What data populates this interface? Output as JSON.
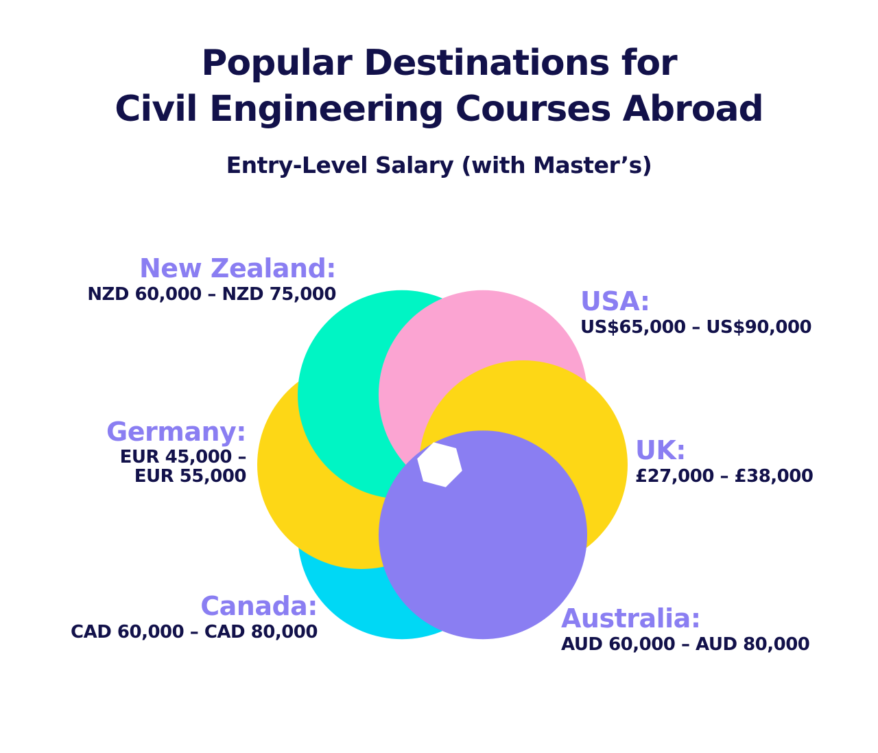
{
  "title": {
    "line1": "Popular Destinations for",
    "line2": "Civil Engineering Courses Abroad"
  },
  "subtitle": "Entry-Level Salary (with Master’s)",
  "colors": {
    "title": "#12114a",
    "country_label": "#8a7ef2",
    "teal": "#00f5c4",
    "pink": "#fba4d2",
    "yellow": "#fdd716",
    "cyan": "#00d8f5",
    "purple": "#8a7ef2"
  },
  "destinations": [
    {
      "country": "New Zealand:",
      "salary": "NZD 60,000 – NZD 75,000",
      "color": "#00f5c4"
    },
    {
      "country": "USA:",
      "salary": "US$65,000 – US$90,000",
      "color": "#fba4d2"
    },
    {
      "country": "UK:",
      "salary": "£27,000 – £38,000",
      "color": "#fdd716"
    },
    {
      "country": "Australia:",
      "salary": "AUD 60,000 – AUD 80,000",
      "color": "#8a7ef2"
    },
    {
      "country": "Canada:",
      "salary": "CAD 60,000 – CAD 80,000",
      "color": "#00d8f5"
    },
    {
      "country": "Germany:",
      "salary_line1": "EUR 45,000 –",
      "salary_line2": "EUR 55,000",
      "color": "#fdd716"
    }
  ]
}
